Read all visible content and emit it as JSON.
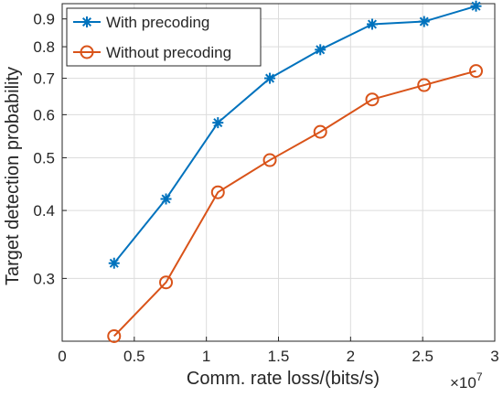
{
  "chart_data": {
    "type": "line",
    "xlabel": "Comm. rate loss/(bits/s)",
    "ylabel": "Target detection probability",
    "x_exponent": "×10^7",
    "x_exponent_base": "×10",
    "x_exponent_power": "7",
    "xlim": [
      0,
      3
    ],
    "ylim": [
      0.23,
      0.96
    ],
    "yscale": "log",
    "xticks": [
      0,
      0.5,
      1,
      1.5,
      2,
      2.5,
      3
    ],
    "xtick_labels": [
      "0",
      "0.5",
      "1",
      "1.5",
      "2",
      "2.5",
      "3"
    ],
    "yticks": [
      0.3,
      0.4,
      0.5,
      0.6,
      0.7,
      0.8,
      0.9
    ],
    "ytick_labels": [
      "0.3",
      "0.4",
      "0.5",
      "0.6",
      "0.7",
      "0.8",
      "0.9"
    ],
    "grid": true,
    "legend_position": "top-left",
    "series": [
      {
        "name": "With precoding",
        "color": "#0072BD",
        "marker": "asterisk",
        "x": [
          0.36,
          0.72,
          1.08,
          1.44,
          1.79,
          2.15,
          2.51,
          2.87
        ],
        "y": [
          0.32,
          0.42,
          0.58,
          0.7,
          0.79,
          0.88,
          0.89,
          0.95
        ]
      },
      {
        "name": "Without precoding",
        "color": "#D95319",
        "marker": "circle",
        "x": [
          0.36,
          0.72,
          1.08,
          1.44,
          1.79,
          2.15,
          2.51,
          2.87
        ],
        "y": [
          0.235,
          0.295,
          0.432,
          0.495,
          0.558,
          0.64,
          0.68,
          0.722
        ]
      }
    ]
  }
}
